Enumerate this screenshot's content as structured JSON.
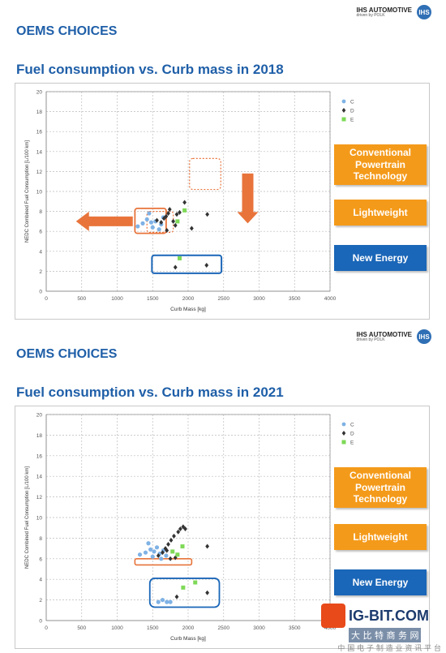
{
  "brand": {
    "name": "IHS AUTOMOTIVE",
    "sub": "driven by POLK",
    "logo": "IHS"
  },
  "slides": [
    {
      "section_title": "OEMS CHOICES",
      "chart_title": "Fuel consumption vs. Curb mass in 2018"
    },
    {
      "section_title": "OEMS CHOICES",
      "chart_title": "Fuel consumption vs. Curb mass in 2021"
    }
  ],
  "categories": {
    "conventional": "Conventional Powertrain Technology",
    "lightweight": "Lightweight",
    "new_energy": "New Energy"
  },
  "colors": {
    "C": "#7fb2e5",
    "D": "#333333",
    "E": "#7ed957",
    "orange": "#f49a1a",
    "blue": "#1a66b8",
    "title": "#1f5fa8"
  },
  "watermark": {
    "name": "IG-BIT.COM",
    "line1": "大 比 特 商 务 网",
    "line2": "中 国 电 子 制 造 业 资 讯 平 台"
  },
  "chart_data": [
    {
      "type": "scatter",
      "title": "",
      "xlabel": "Curb Mass [kg]",
      "ylabel": "NEDC Combined Fuel Consumption [L/100 km]",
      "xlim": [
        0,
        4000
      ],
      "ylim": [
        0,
        20
      ],
      "xticks": [
        0,
        500,
        1000,
        1500,
        2000,
        2500,
        3000,
        3500,
        4000
      ],
      "yticks": [
        0,
        2,
        4,
        6,
        8,
        10,
        12,
        14,
        16,
        18,
        20
      ],
      "grid": true,
      "legend": "top-right",
      "series": [
        {
          "name": "C",
          "marker": "circle",
          "points": [
            [
              1290,
              6.5
            ],
            [
              1360,
              6.8
            ],
            [
              1420,
              7.2
            ],
            [
              1450,
              7.8
            ],
            [
              1480,
              6.9
            ],
            [
              1500,
              6.4
            ],
            [
              1540,
              7.0
            ],
            [
              1590,
              6.2
            ],
            [
              1620,
              6.7
            ],
            [
              1650,
              7.4
            ]
          ]
        },
        {
          "name": "D",
          "marker": "diamond",
          "points": [
            [
              1560,
              7.1
            ],
            [
              1620,
              6.9
            ],
            [
              1660,
              7.3
            ],
            [
              1690,
              7.5
            ],
            [
              1720,
              7.8
            ],
            [
              1740,
              8.2
            ],
            [
              1790,
              7.0
            ],
            [
              1840,
              7.7
            ],
            [
              1880,
              7.9
            ],
            [
              1950,
              8.9
            ],
            [
              2050,
              6.3
            ],
            [
              2270,
              7.7
            ],
            [
              2260,
              2.6
            ],
            [
              1820,
              6.6
            ],
            [
              1700,
              6.1
            ],
            [
              1820,
              2.4
            ]
          ]
        },
        {
          "name": "E",
          "marker": "square",
          "points": [
            [
              1850,
              7.0
            ],
            [
              1950,
              8.1
            ],
            [
              1880,
              3.3
            ]
          ]
        }
      ]
    },
    {
      "type": "scatter",
      "title": "",
      "xlabel": "Curb Mass [kg]",
      "ylabel": "NEDC Combined Fuel Consumption [L/100 km]",
      "xlim": [
        0,
        4000
      ],
      "ylim": [
        0,
        20
      ],
      "xticks": [
        0,
        500,
        1000,
        1500,
        2000,
        2500,
        3000,
        3500,
        4000
      ],
      "yticks": [
        0,
        2,
        4,
        6,
        8,
        10,
        12,
        14,
        16,
        18,
        20
      ],
      "grid": true,
      "legend": "top-right",
      "series": [
        {
          "name": "C",
          "marker": "circle",
          "points": [
            [
              1320,
              6.4
            ],
            [
              1400,
              6.6
            ],
            [
              1440,
              7.5
            ],
            [
              1470,
              6.9
            ],
            [
              1500,
              6.2
            ],
            [
              1520,
              6.7
            ],
            [
              1560,
              7.1
            ],
            [
              1600,
              6.5
            ],
            [
              1620,
              6.0
            ],
            [
              1650,
              6.8
            ],
            [
              1690,
              6.3
            ],
            [
              1580,
              1.8
            ],
            [
              1640,
              2.0
            ],
            [
              1700,
              1.8
            ],
            [
              1750,
              1.8
            ]
          ]
        },
        {
          "name": "D",
          "marker": "diamond",
          "points": [
            [
              1580,
              6.3
            ],
            [
              1640,
              6.6
            ],
            [
              1680,
              7.0
            ],
            [
              1720,
              7.4
            ],
            [
              1760,
              7.8
            ],
            [
              1800,
              8.2
            ],
            [
              1820,
              6.1
            ],
            [
              1860,
              8.6
            ],
            [
              1890,
              8.9
            ],
            [
              1930,
              9.1
            ],
            [
              1960,
              8.9
            ],
            [
              1700,
              6.8
            ],
            [
              1750,
              6.0
            ],
            [
              2270,
              7.2
            ],
            [
              2270,
              2.7
            ],
            [
              1840,
              2.3
            ]
          ]
        },
        {
          "name": "E",
          "marker": "square",
          "points": [
            [
              1780,
              6.7
            ],
            [
              1850,
              6.4
            ],
            [
              1920,
              7.2
            ],
            [
              2100,
              3.7
            ],
            [
              1930,
              3.2
            ]
          ]
        }
      ]
    }
  ]
}
